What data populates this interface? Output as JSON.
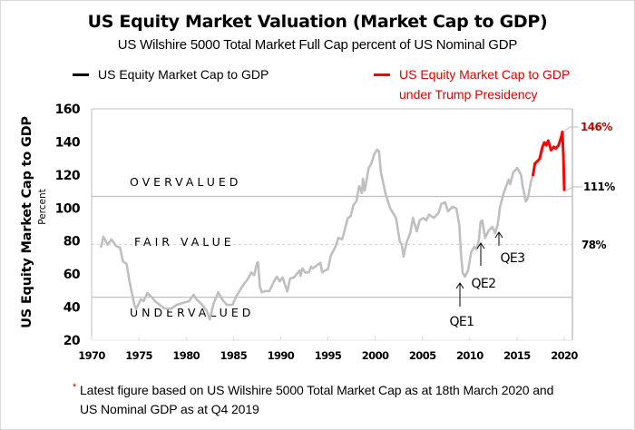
{
  "chart_data": {
    "type": "line",
    "title": "US Equity Market Valuation (Market Cap to GDP)",
    "subtitle": "US Wilshire 5000 Total Market Full Cap percent of US Nominal GDP",
    "ylabel": "US Equity Market Cap to GDP",
    "ylabel_sub": "Percent",
    "xlabel": "",
    "ylim": [
      20,
      160
    ],
    "xlim": [
      1970,
      2021
    ],
    "yticks": [
      20,
      40,
      60,
      80,
      100,
      120,
      140,
      160
    ],
    "xticks": [
      1970,
      1975,
      1980,
      1985,
      1990,
      1995,
      2000,
      2005,
      2010,
      2015,
      2020
    ],
    "grid": false,
    "legend": [
      {
        "label": "US Equity Market Cap to GDP",
        "color": "#000000"
      },
      {
        "label_line1": "US Equity Market Cap to GDP",
        "label_line2": "under Trump Presidency",
        "color": "#ff0000"
      }
    ],
    "reference_lines": [
      {
        "name": "overvalued",
        "value": 107,
        "style": "solid",
        "color": "#bfbfbf",
        "label": "OVERVALUED"
      },
      {
        "name": "fair-value",
        "value": 78,
        "style": "dashed",
        "color": "#d9d9d9",
        "label": "FAIR VALUE"
      },
      {
        "name": "undervalued",
        "value": 46,
        "style": "solid",
        "color": "#bfbfbf",
        "label": "UNDERVALUED"
      }
    ],
    "series": [
      {
        "name": "US Equity Market Cap to GDP",
        "color": "#bfbfbf",
        "points": [
          [
            1971.0,
            76.6
          ],
          [
            1971.25,
            82.6
          ],
          [
            1971.7,
            77.7
          ],
          [
            1972.1,
            81
          ],
          [
            1972.6,
            77
          ],
          [
            1973.0,
            76
          ],
          [
            1973.3,
            67.8
          ],
          [
            1973.7,
            66
          ],
          [
            1974.0,
            55.7
          ],
          [
            1974.5,
            42
          ],
          [
            1974.7,
            38.7
          ],
          [
            1975.2,
            44.7
          ],
          [
            1975.5,
            43.6
          ],
          [
            1975.9,
            48.5
          ],
          [
            1976.4,
            45.8
          ],
          [
            1976.7,
            43.6
          ],
          [
            1977.2,
            41.4
          ],
          [
            1977.7,
            39.2
          ],
          [
            1978.4,
            39
          ],
          [
            1979.0,
            41.4
          ],
          [
            1980.3,
            43.6
          ],
          [
            1980.8,
            47.5
          ],
          [
            1981.1,
            44.7
          ],
          [
            1981.6,
            42
          ],
          [
            1982.2,
            37.6
          ],
          [
            1982.5,
            32.6
          ],
          [
            1982.9,
            42
          ],
          [
            1983.4,
            49
          ],
          [
            1983.8,
            44.7
          ],
          [
            1984.3,
            41.4
          ],
          [
            1984.9,
            41.4
          ],
          [
            1985.3,
            46.4
          ],
          [
            1985.8,
            51.3
          ],
          [
            1986.2,
            54.6
          ],
          [
            1986.5,
            56.8
          ],
          [
            1986.9,
            61
          ],
          [
            1987.2,
            59.3
          ],
          [
            1987.5,
            66.7
          ],
          [
            1987.6,
            67.2
          ],
          [
            1987.8,
            52.4
          ],
          [
            1988.0,
            49
          ],
          [
            1988.4,
            49.7
          ],
          [
            1988.8,
            49.7
          ],
          [
            1989.3,
            55.7
          ],
          [
            1989.6,
            58.4
          ],
          [
            1989.9,
            55.7
          ],
          [
            1990.2,
            58
          ],
          [
            1990.7,
            49.5
          ],
          [
            1991.0,
            57.3
          ],
          [
            1991.4,
            58
          ],
          [
            1991.7,
            60
          ],
          [
            1992.0,
            62.3
          ],
          [
            1992.1,
            59
          ],
          [
            1992.3,
            63.4
          ],
          [
            1992.6,
            61
          ],
          [
            1993.0,
            61
          ],
          [
            1993.2,
            64.5
          ],
          [
            1993.4,
            63.4
          ],
          [
            1993.9,
            65.6
          ],
          [
            1994.2,
            66.7
          ],
          [
            1994.4,
            61
          ],
          [
            1994.7,
            62.3
          ],
          [
            1995.0,
            62.8
          ],
          [
            1995.3,
            71
          ],
          [
            1995.8,
            76.6
          ],
          [
            1996.1,
            82
          ],
          [
            1996.5,
            81
          ],
          [
            1996.7,
            85
          ],
          [
            1997.1,
            94
          ],
          [
            1997.4,
            95
          ],
          [
            1997.7,
            101.8
          ],
          [
            1998.0,
            104
          ],
          [
            1998.3,
            113.3
          ],
          [
            1998.6,
            109
          ],
          [
            1998.7,
            117.7
          ],
          [
            1998.9,
            110.6
          ],
          [
            1999.3,
            124
          ],
          [
            1999.5,
            126
          ],
          [
            1999.6,
            127
          ],
          [
            1999.9,
            132.6
          ],
          [
            2000.2,
            135.3
          ],
          [
            2000.4,
            134.2
          ],
          [
            2000.6,
            121.6
          ],
          [
            2001.1,
            108.4
          ],
          [
            2001.6,
            99.6
          ],
          [
            2002.2,
            94
          ],
          [
            2002.6,
            79.8
          ],
          [
            2002.8,
            78
          ],
          [
            2003.0,
            70.5
          ],
          [
            2003.3,
            78.8
          ],
          [
            2003.7,
            84.8
          ],
          [
            2004.0,
            94
          ],
          [
            2004.4,
            85.9
          ],
          [
            2004.7,
            92.5
          ],
          [
            2005.1,
            94
          ],
          [
            2005.4,
            92.5
          ],
          [
            2005.7,
            96
          ],
          [
            2006.2,
            94
          ],
          [
            2006.7,
            97
          ],
          [
            2007.0,
            102.4
          ],
          [
            2007.4,
            103.5
          ],
          [
            2007.7,
            98
          ],
          [
            2008.2,
            100.7
          ],
          [
            2008.6,
            99.6
          ],
          [
            2008.9,
            89.7
          ],
          [
            2009.1,
            72
          ],
          [
            2009.3,
            61
          ],
          [
            2009.6,
            58.4
          ],
          [
            2010.0,
            62.3
          ],
          [
            2010.4,
            73.3
          ],
          [
            2010.8,
            76.6
          ],
          [
            2011.1,
            75
          ],
          [
            2011.4,
            81
          ],
          [
            2011.6,
            91.4
          ],
          [
            2011.8,
            92.5
          ],
          [
            2012.2,
            82
          ],
          [
            2012.6,
            86
          ],
          [
            2013.1,
            88.6
          ],
          [
            2013.5,
            84.8
          ],
          [
            2013.6,
            87
          ],
          [
            2013.8,
            89.7
          ],
          [
            2014.1,
            100.7
          ],
          [
            2014.4,
            106
          ],
          [
            2014.6,
            109.5
          ],
          [
            2014.9,
            113.3
          ],
          [
            2015.2,
            117.2
          ],
          [
            2015.4,
            114.5
          ],
          [
            2015.8,
            121.6
          ],
          [
            2016.1,
            123
          ],
          [
            2016.3,
            124.3
          ],
          [
            2016.8,
            120
          ],
          [
            2017.0,
            113.3
          ],
          [
            2017.3,
            104
          ],
          [
            2017.5,
            106
          ],
          [
            2017.8,
            116
          ],
          [
            2018.0,
            120
          ]
        ]
      },
      {
        "name": "US Equity Market Cap to GDP under Trump Presidency",
        "color": "#ff0000",
        "points": [
          [
            2018.0,
            120
          ],
          [
            2018.2,
            127
          ],
          [
            2018.4,
            128
          ],
          [
            2018.7,
            129.8
          ],
          [
            2019.0,
            137
          ],
          [
            2019.2,
            139.7
          ],
          [
            2019.4,
            138
          ],
          [
            2019.6,
            140.8
          ],
          [
            2019.9,
            135
          ],
          [
            2020.2,
            137
          ],
          [
            2020.4,
            136
          ],
          [
            2020.7,
            138
          ],
          [
            2020.8,
            139.7
          ],
          [
            2021.0,
            143.5
          ],
          [
            2021.1,
            146
          ],
          [
            2021.2,
            132.6
          ],
          [
            2021.3,
            111
          ]
        ]
      }
    ],
    "annotations": [
      {
        "text": "QE1",
        "x": 2009.4,
        "y": 58
      },
      {
        "text": "QE2",
        "x": 2011.5,
        "y": 72
      },
      {
        "text": "QE3",
        "x": 2013.5,
        "y": 82
      },
      {
        "text": "146%",
        "color": "#c00000",
        "value": 146
      },
      {
        "text": "111%",
        "color": "#000000",
        "value": 111
      },
      {
        "text": "78%",
        "color": "#000000",
        "value": 78
      }
    ]
  },
  "footnote": {
    "marker": "*",
    "line1": "Latest figure based on US Wilshire 5000 Total Market Cap as at 18th March 2020 and",
    "line2": "US Nominal GDP as at Q4 2019"
  }
}
